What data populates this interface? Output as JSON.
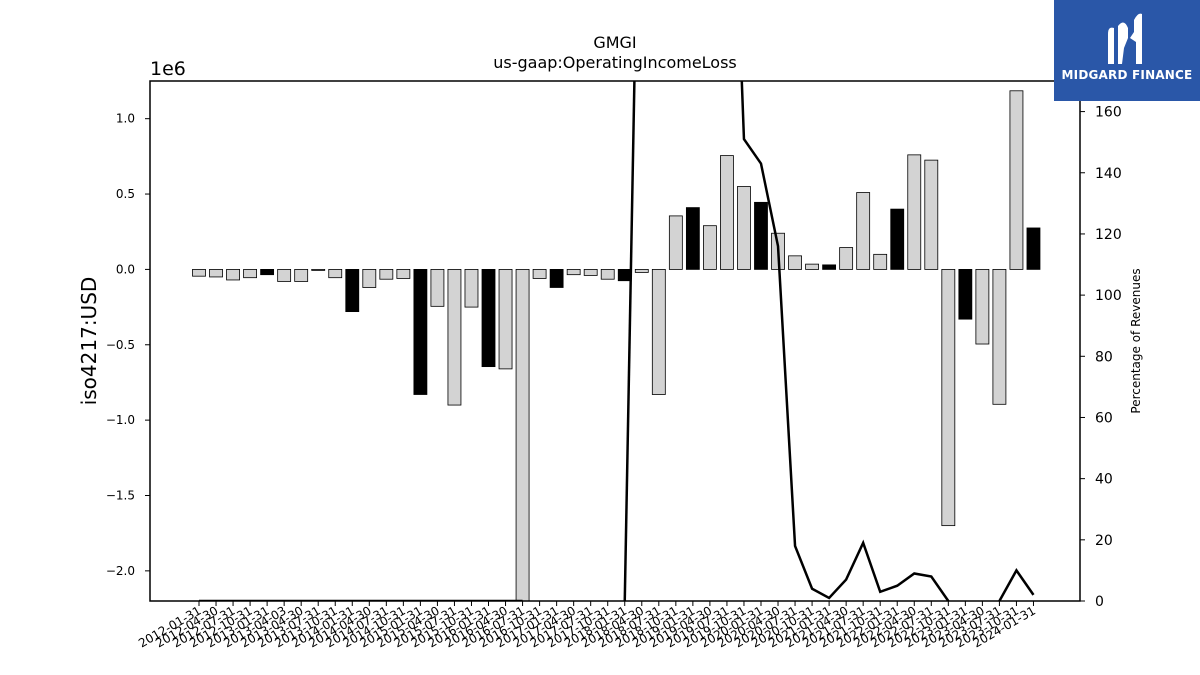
{
  "logo": {
    "text": "MIDGARD FINANCE",
    "icon": "midgard-m-icon",
    "color": "#2a57a8"
  },
  "chart_data": {
    "type": "bar",
    "title": "GMGI",
    "subtitle": "us-gaap:OperatingIncomeLoss",
    "ylabel": "iso4217:USD",
    "y_multiplier": "1e6",
    "ylim": [
      -2.2,
      1.25
    ],
    "yticks": [
      -2.0,
      -1.5,
      -1.0,
      -0.5,
      0.0,
      0.5,
      1.0
    ],
    "yticklabels": [
      "−2.0",
      "−1.5",
      "−1.0",
      "−0.5",
      "0.0",
      "0.5",
      "1.0"
    ],
    "y2label": "Percentage of Revenues",
    "y2lim": [
      0,
      170
    ],
    "y2ticks": [
      0,
      20,
      40,
      60,
      80,
      100,
      120,
      140,
      160
    ],
    "bar_colors": {
      "quarterly": "#d3d3d3",
      "annual": "#000000"
    },
    "categories": [
      "2012-01-31",
      "2012-04-30",
      "2012-07-31",
      "2012-10-31",
      "2013-01-31",
      "2013-04-03",
      "2013-04-30",
      "2013-07-31",
      "2013-10-31",
      "2014-01-31",
      "2014-04-30",
      "2014-07-31",
      "2014-10-31",
      "2015-01-31",
      "2015-04-30",
      "2015-07-31",
      "2015-10-31",
      "2016-01-31",
      "2016-04-30",
      "2016-07-31",
      "2016-10-31",
      "2017-01-31",
      "2017-04-30",
      "2017-07-31",
      "2017-10-31",
      "2018-01-31",
      "2018-04-30",
      "2018-07-31",
      "2018-10-31",
      "2019-01-31",
      "2019-04-30",
      "2019-07-31",
      "2019-10-31",
      "2020-01-31",
      "2020-04-30",
      "2020-07-31",
      "2020-10-31",
      "2021-01-31",
      "2021-04-30",
      "2021-07-31",
      "2021-10-31",
      "2022-01-31",
      "2022-04-30",
      "2022-07-31",
      "2022-10-31",
      "2023-01-31",
      "2023-04-30",
      "2023-07-31",
      "2023-10-31",
      "2024-01-31"
    ],
    "xticklabels": [
      "2012-01-31",
      "2012-04-30",
      "2012-07-31",
      "2012-10-31",
      "2013-01-31",
      "2013-04-03",
      "2013-04-30",
      "2013-07-31",
      "2013-10-31",
      "2014-01-31",
      "2014-04-30",
      "2014-07-31",
      "2014-10-31",
      "2015-01-31",
      "2015-04-30",
      "2015-07-31",
      "2015-10-31",
      "2016-01-31",
      "2016-04-30",
      "2016-07-31",
      "2016-10-31",
      "2017-01-31",
      "2017-04-30",
      "2017-07-31",
      "2017-10-31",
      "2018-01-31",
      "2018-04-30",
      "2018-07-31",
      "2018-10-31",
      "2019-01-31",
      "2019-04-30",
      "2019-07-31",
      "2019-10-31",
      "2020-01-31",
      "2020-04-30",
      "2020-07-31",
      "2020-10-31",
      "2021-01-31",
      "2021-04-30",
      "2021-07-31",
      "2021-10-31",
      "2022-01-31",
      "2022-04-30",
      "2022-07-31",
      "2022-10-31",
      "2023-01-31",
      "2023-04-30",
      "2023-07-31",
      "2023-10-31",
      "2024-01-31"
    ],
    "values": [
      -0.045,
      -0.05,
      -0.07,
      -0.055,
      -0.035,
      -0.08,
      -0.08,
      -0.005,
      -0.055,
      -0.28,
      -0.12,
      -0.065,
      -0.06,
      -0.83,
      -0.245,
      -0.9,
      -0.25,
      -0.645,
      -0.66,
      -2.2,
      -0.06,
      -0.12,
      -0.035,
      -0.04,
      -0.065,
      -0.075,
      -0.02,
      -0.83,
      0.355,
      0.41,
      0.29,
      0.755,
      0.55,
      0.445,
      0.24,
      0.09,
      0.035,
      0.03,
      0.145,
      0.51,
      0.1,
      0.4,
      0.76,
      0.725,
      -1.7,
      -0.33,
      -0.495,
      -0.895,
      1.185,
      0.275
    ],
    "annual": [
      false,
      false,
      false,
      false,
      true,
      false,
      false,
      false,
      false,
      true,
      false,
      false,
      false,
      true,
      false,
      false,
      false,
      true,
      false,
      false,
      false,
      true,
      false,
      false,
      false,
      true,
      false,
      false,
      false,
      true,
      false,
      false,
      false,
      true,
      false,
      false,
      false,
      true,
      false,
      false,
      false,
      true,
      false,
      false,
      false,
      true,
      false,
      false,
      false,
      true
    ],
    "line_values": [
      0,
      0,
      0,
      0,
      0,
      0,
      0,
      0,
      0,
      0,
      0,
      0,
      0,
      0,
      0,
      0,
      0,
      0,
      0,
      0,
      null,
      null,
      null,
      null,
      null,
      0,
      300,
      null,
      null,
      null,
      null,
      300,
      151,
      143,
      116,
      18,
      4,
      1,
      7,
      19,
      3,
      5,
      9,
      8,
      0,
      null,
      null,
      0,
      10,
      2
    ]
  }
}
